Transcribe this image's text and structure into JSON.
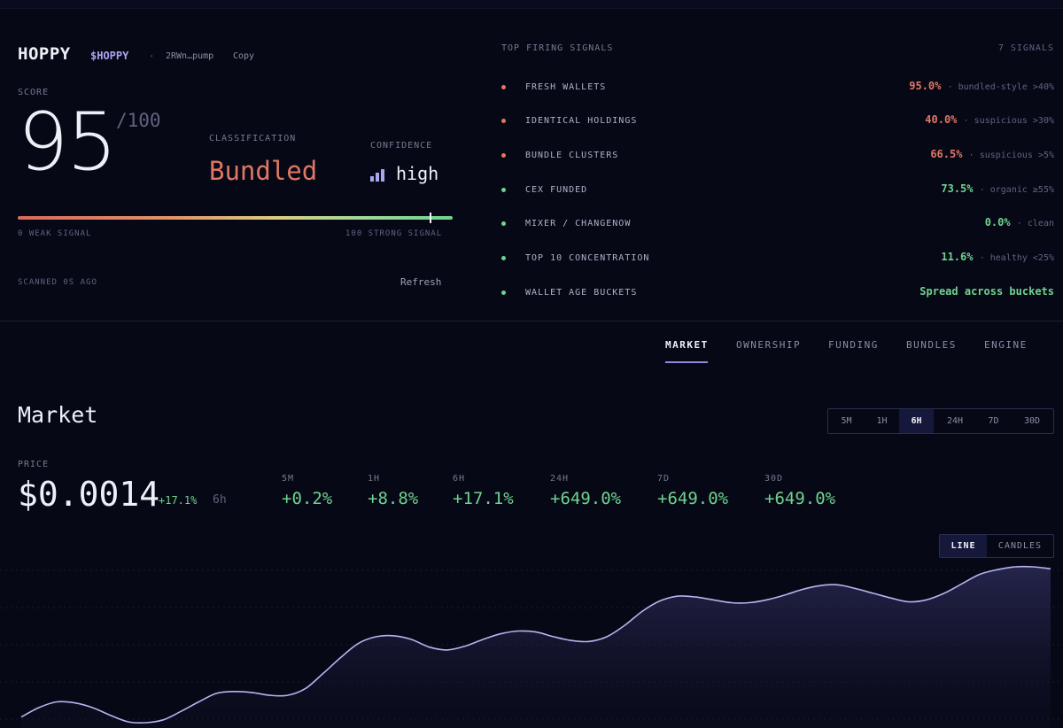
{
  "token": {
    "name": "HOPPY",
    "ticker": "$HOPPY",
    "separator": "·",
    "address": "2RWn…pump",
    "copy_label": "Copy"
  },
  "score": {
    "label": "SCORE",
    "value": "95",
    "max": "/100",
    "gauge_fraction": 0.95,
    "gauge_min": "0 WEAK SIGNAL",
    "gauge_max": "100 STRONG SIGNAL"
  },
  "classification": {
    "label": "CLASSIFICATION",
    "value": "Bundled",
    "color": "#e07764"
  },
  "confidence": {
    "label": "CONFIDENCE",
    "value": "high",
    "icon": "signal-bars-icon"
  },
  "scan": {
    "status": "SCANNED 0S AGO",
    "refresh_label": "Refresh"
  },
  "signals": {
    "title": "TOP FIRING SIGNALS",
    "count": "7 SIGNALS",
    "items": [
      {
        "name": "FRESH WALLETS",
        "value": "95.0%",
        "note": "· bundled-style >40%",
        "color": "#e07764"
      },
      {
        "name": "IDENTICAL HOLDINGS",
        "value": "40.0%",
        "note": "· suspicious >30%",
        "color": "#e07764"
      },
      {
        "name": "BUNDLE CLUSTERS",
        "value": "66.5%",
        "note": "· suspicious >5%",
        "color": "#e07764"
      },
      {
        "name": "CEX FUNDED",
        "value": "73.5%",
        "note": "· organic ≥55%",
        "color": "#6ed38f"
      },
      {
        "name": "MIXER / CHANGENOW",
        "value": "0.0%",
        "note": "· clean",
        "color": "#6ed38f"
      },
      {
        "name": "TOP 10 CONCENTRATION",
        "value": "11.6%",
        "note": "· healthy <25%",
        "color": "#6ed38f"
      },
      {
        "name": "WALLET AGE BUCKETS",
        "value": "Spread across buckets",
        "note": "",
        "color": "#6ed38f"
      }
    ]
  },
  "tabs": [
    {
      "label": "MARKET",
      "active": true
    },
    {
      "label": "OWNERSHIP",
      "active": false
    },
    {
      "label": "FUNDING",
      "active": false
    },
    {
      "label": "BUNDLES",
      "active": false
    },
    {
      "label": "ENGINE",
      "active": false
    }
  ],
  "market": {
    "title": "Market",
    "timeframes": [
      "5M",
      "1H",
      "6H",
      "24H",
      "7D",
      "30D"
    ],
    "active_timeframe": "6H",
    "price_label": "PRICE",
    "price": "$0.0014",
    "price_change": "+17.1%",
    "price_period": "6h",
    "stats": [
      {
        "label": "5M",
        "value": "+0.2%"
      },
      {
        "label": "1H",
        "value": "+8.8%"
      },
      {
        "label": "6H",
        "value": "+17.1%"
      },
      {
        "label": "24H",
        "value": "+649.0%"
      },
      {
        "label": "7D",
        "value": "+649.0%"
      },
      {
        "label": "30D",
        "value": "+649.0%"
      }
    ],
    "chart_types": [
      {
        "label": "LINE",
        "active": true
      },
      {
        "label": "CANDLES",
        "active": false
      }
    ]
  },
  "chart_data": {
    "type": "area",
    "title": "",
    "xlabel": "",
    "ylabel": "",
    "grid": true,
    "line_color": "#b7b4ee",
    "series": [
      {
        "values": [
          6e-05,
          0.00016,
          0.00022,
          0.00021,
          0.00016,
          8e-05,
          1e-05,
          0.0,
          3e-05,
          0.00012,
          0.00022,
          0.00031,
          0.00033,
          0.00032,
          0.00029,
          0.00029,
          0.00036,
          0.00052,
          0.00069,
          0.00084,
          0.00091,
          0.00092,
          0.00088,
          0.0008,
          0.00077,
          0.00081,
          0.00088,
          0.00094,
          0.00097,
          0.00096,
          0.00091,
          0.00087,
          0.00086,
          0.00091,
          0.00103,
          0.00118,
          0.00129,
          0.00134,
          0.00133,
          0.0013,
          0.00127,
          0.00127,
          0.0013,
          0.00135,
          0.00141,
          0.00145,
          0.00146,
          0.00142,
          0.00137,
          0.00132,
          0.00128,
          0.0013,
          0.00137,
          0.00147,
          0.00157,
          0.00162,
          0.00165,
          0.00165,
          0.00163
        ]
      }
    ]
  }
}
